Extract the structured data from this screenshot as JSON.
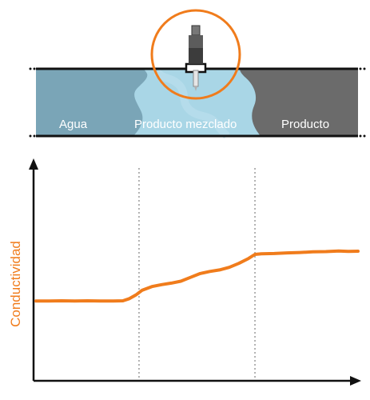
{
  "pipe": {
    "zones": [
      {
        "id": "water",
        "label": "Agua",
        "color": "#7aa5b7"
      },
      {
        "id": "mixed",
        "label": "Producto mezclado",
        "color": "#a9d6e6"
      },
      {
        "id": "product",
        "label": "Producto",
        "color": "#6b6b6b"
      }
    ],
    "sensor_highlight_color": "#f07c1c"
  },
  "chart_data": {
    "type": "line",
    "ylabel": "Conductividad",
    "xlabel": "",
    "ylim": [
      0,
      100
    ],
    "xlim": [
      0,
      100
    ],
    "grid": false,
    "transition_markers": [
      32,
      68
    ],
    "series": [
      {
        "color": "#f07c1c",
        "x": [
          0,
          4,
          8,
          12,
          16,
          20,
          24,
          27,
          29,
          31,
          33,
          36,
          39,
          42,
          45,
          48,
          51,
          54,
          57,
          60,
          63,
          66,
          68,
          70,
          74,
          78,
          82,
          86,
          90,
          94,
          97,
          100
        ],
        "y": [
          37.5,
          37.5,
          37.6,
          37.5,
          37.6,
          37.5,
          37.5,
          37.6,
          38.6,
          40.3,
          42.6,
          44.3,
          45.2,
          45.9,
          46.8,
          48.6,
          50.4,
          51.4,
          52.1,
          53.3,
          55.2,
          57.5,
          59.4,
          59.7,
          59.8,
          60.1,
          60.3,
          60.6,
          60.7,
          61,
          60.8,
          60.9
        ]
      }
    ]
  }
}
